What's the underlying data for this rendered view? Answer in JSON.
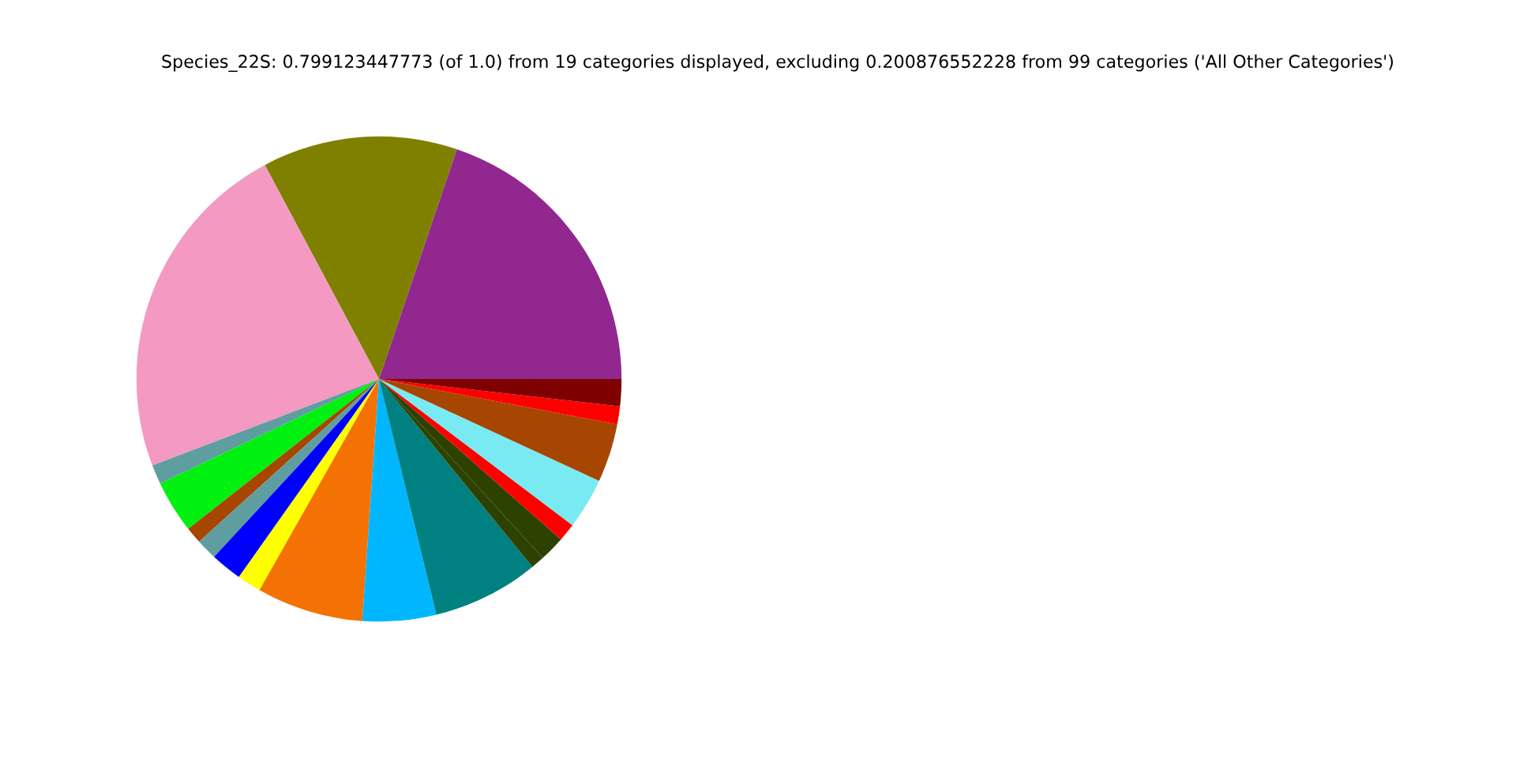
{
  "chart_data": {
    "type": "pie",
    "title": "Species_22S: 0.799123447773 (of 1.0) from 19 categories displayed, excluding 0.200876552228 from 99 categories ('All Other Categories')",
    "categories": [
      null,
      null,
      null,
      null,
      null,
      null,
      null,
      null,
      null,
      null,
      null,
      null,
      null,
      null,
      null,
      null,
      null,
      null,
      null
    ],
    "values": [
      19.8,
      13.0,
      23.0,
      1.3,
      3.5,
      1.1,
      1.4,
      2.1,
      1.6,
      7.1,
      4.9,
      7.1,
      0.9,
      1.7,
      1.2,
      3.4,
      3.9,
      1.2,
      1.8
    ],
    "colors": [
      "#92278f",
      "#808000",
      "#f49ac2",
      "#5f9ea0",
      "#00f010",
      "#a64600",
      "#5f9ea0",
      "#0000ff",
      "#ffff00",
      "#f47204",
      "#00b7ff",
      "#008080",
      "#2d4200",
      "#2d4200",
      "#ff0000",
      "#7aeaf2",
      "#a64600",
      "#ff0000",
      "#7f0000"
    ]
  }
}
